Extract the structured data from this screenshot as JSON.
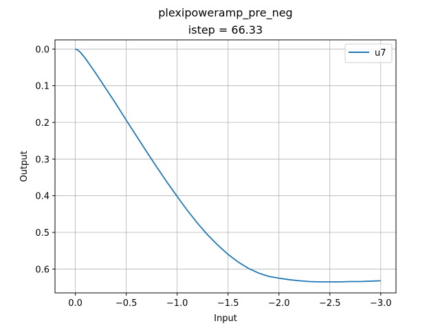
{
  "chart_data": {
    "type": "line",
    "title": "plexipoweramp_pre_neg",
    "subtitle": "istep = 66.33",
    "xlabel": "Input",
    "ylabel": "Output",
    "xlim": [
      0.2,
      -3.15
    ],
    "ylim": [
      0.665,
      -0.025
    ],
    "y_inverted": true,
    "x_inverted": true,
    "grid": true,
    "legend_position": "top-right",
    "x_ticks": [
      {
        "value": 0.0,
        "label": "0.0"
      },
      {
        "value": -0.5,
        "label": "−0.5"
      },
      {
        "value": -1.0,
        "label": "−1.0"
      },
      {
        "value": -1.5,
        "label": "−1.5"
      },
      {
        "value": -2.0,
        "label": "−2.0"
      },
      {
        "value": -2.5,
        "label": "−2.5"
      },
      {
        "value": -3.0,
        "label": "−3.0"
      }
    ],
    "y_ticks": [
      {
        "value": 0.0,
        "label": "0.0"
      },
      {
        "value": 0.1,
        "label": "0.1"
      },
      {
        "value": 0.2,
        "label": "0.2"
      },
      {
        "value": 0.3,
        "label": "0.3"
      },
      {
        "value": 0.4,
        "label": "0.4"
      },
      {
        "value": 0.5,
        "label": "0.5"
      },
      {
        "value": 0.6,
        "label": "0.6"
      }
    ],
    "series": [
      {
        "name": "u7",
        "color": "#1f77b4",
        "x": [
          0.0,
          -0.02,
          -0.05,
          -0.1,
          -0.2,
          -0.3,
          -0.4,
          -0.5,
          -0.6,
          -0.7,
          -0.8,
          -0.9,
          -1.0,
          -1.1,
          -1.2,
          -1.3,
          -1.4,
          -1.5,
          -1.6,
          -1.7,
          -1.8,
          -1.9,
          -2.0,
          -2.1,
          -2.2,
          -2.3,
          -2.4,
          -2.5,
          -2.6,
          -2.7,
          -2.8,
          -2.9,
          -3.0
        ],
        "y": [
          0.0,
          0.002,
          0.009,
          0.026,
          0.066,
          0.108,
          0.15,
          0.194,
          0.237,
          0.28,
          0.322,
          0.363,
          0.402,
          0.44,
          0.475,
          0.507,
          0.535,
          0.56,
          0.581,
          0.598,
          0.611,
          0.62,
          0.625,
          0.629,
          0.632,
          0.634,
          0.635,
          0.635,
          0.635,
          0.634,
          0.634,
          0.633,
          0.632
        ]
      }
    ]
  }
}
